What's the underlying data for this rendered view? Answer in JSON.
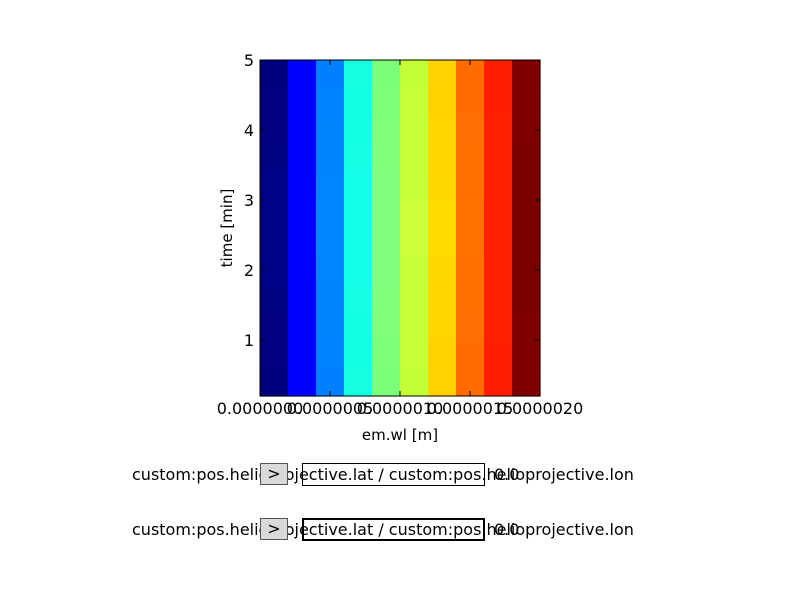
{
  "chart_data": {
    "type": "heatmap",
    "xlabel": "em.wl [m]",
    "ylabel": "time [min]",
    "x_ticks": [
      "0.0000000",
      "0.0000005",
      "0.0000010",
      "0.0000015",
      "0.0000020"
    ],
    "y_ticks": [
      "1",
      "2",
      "3",
      "4",
      "5"
    ],
    "xlim": [
      0.0,
      2e-06
    ],
    "ylim": [
      0.2,
      5.0
    ],
    "n_cols": 10,
    "n_rows": 12,
    "colormap": "jet",
    "column_colors": [
      "#00007f",
      "#0000ff",
      "#0080ff",
      "#15ffe1",
      "#7dff7a",
      "#c1ff36",
      "#ffd000",
      "#ff6c00",
      "#ff1f00",
      "#800000"
    ],
    "values": [
      [
        0.0,
        0.11,
        0.22,
        0.33,
        0.44,
        0.56,
        0.67,
        0.78,
        0.89,
        1.0
      ],
      [
        0.01,
        0.12,
        0.23,
        0.34,
        0.45,
        0.57,
        0.68,
        0.79,
        0.9,
        0.99
      ],
      [
        0.02,
        0.13,
        0.24,
        0.35,
        0.46,
        0.58,
        0.69,
        0.8,
        0.91,
        0.98
      ],
      [
        0.03,
        0.14,
        0.25,
        0.36,
        0.47,
        0.59,
        0.7,
        0.81,
        0.92,
        0.97
      ],
      [
        0.04,
        0.15,
        0.26,
        0.37,
        0.48,
        0.6,
        0.71,
        0.82,
        0.93,
        0.96
      ],
      [
        0.05,
        0.16,
        0.27,
        0.38,
        0.49,
        0.61,
        0.72,
        0.83,
        0.94,
        0.95
      ],
      [
        0.05,
        0.16,
        0.27,
        0.38,
        0.49,
        0.61,
        0.72,
        0.83,
        0.94,
        0.95
      ],
      [
        0.04,
        0.15,
        0.26,
        0.37,
        0.48,
        0.6,
        0.71,
        0.82,
        0.93,
        0.96
      ],
      [
        0.03,
        0.14,
        0.25,
        0.36,
        0.47,
        0.59,
        0.7,
        0.81,
        0.92,
        0.97
      ],
      [
        0.02,
        0.13,
        0.24,
        0.35,
        0.46,
        0.58,
        0.69,
        0.8,
        0.91,
        0.98
      ],
      [
        0.01,
        0.12,
        0.23,
        0.34,
        0.45,
        0.57,
        0.68,
        0.79,
        0.9,
        0.99
      ],
      [
        0.0,
        0.11,
        0.22,
        0.33,
        0.44,
        0.56,
        0.67,
        0.78,
        0.89,
        1.0
      ]
    ],
    "grid": false
  },
  "controls": [
    {
      "label": "custom:pos.helioprojective.lat / custom:pos.helioprojective.lon",
      "button_label": ">",
      "value": "0.0",
      "active": false
    },
    {
      "label": "custom:pos.helioprojective.lat / custom:pos.helioprojective.lon",
      "button_label": ">",
      "value": "0.0",
      "active": true
    }
  ]
}
